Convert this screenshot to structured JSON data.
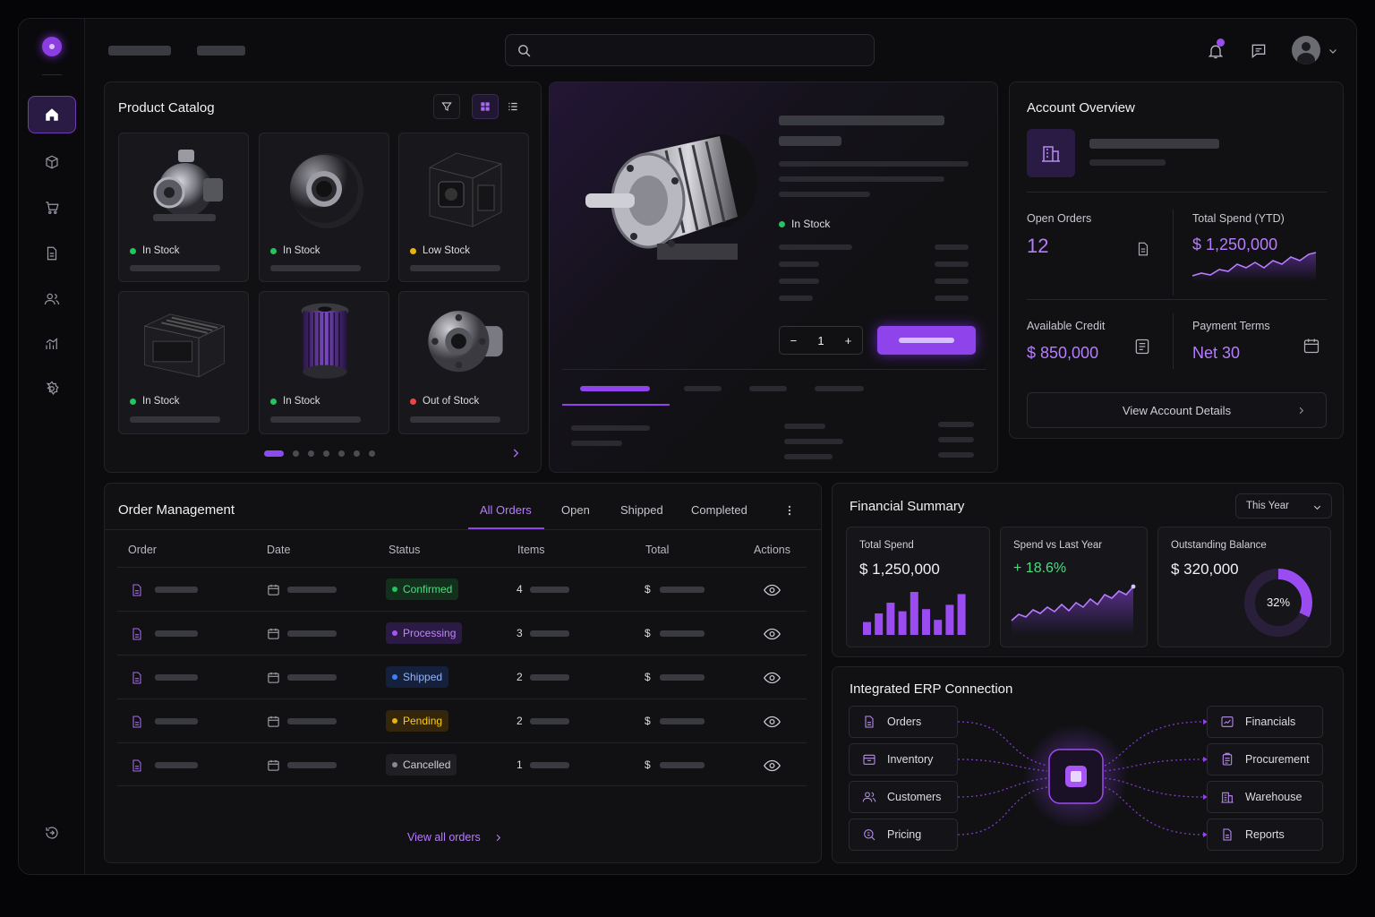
{
  "catalog": {
    "title": "Product Catalog",
    "products": [
      {
        "status": "In Stock",
        "status_color": "#22c55e"
      },
      {
        "status": "In Stock",
        "status_color": "#22c55e"
      },
      {
        "status": "Low Stock",
        "status_color": "#eab308"
      },
      {
        "status": "In Stock",
        "status_color": "#22c55e"
      },
      {
        "status": "In Stock",
        "status_color": "#22c55e"
      },
      {
        "status": "Out of Stock",
        "status_color": "#ef4444"
      }
    ]
  },
  "detail": {
    "status": "In Stock",
    "quantity": "1",
    "qty_minus": "−",
    "qty_plus": "+"
  },
  "account": {
    "title": "Account Overview",
    "open_orders_label": "Open Orders",
    "open_orders_value": "12",
    "total_spend_label": "Total Spend (YTD)",
    "total_spend_value": "$ 1,250,000",
    "available_credit_label": "Available Credit",
    "available_credit_value": "$ 850,000",
    "payment_terms_label": "Payment Terms",
    "payment_terms_value": "Net 30",
    "view_details": "View Account Details"
  },
  "orders": {
    "title": "Order Management",
    "tabs": [
      "All Orders",
      "Open",
      "Shipped",
      "Completed"
    ],
    "columns": [
      "Order",
      "Date",
      "Status",
      "Items",
      "Total",
      "Actions"
    ],
    "rows": [
      {
        "status": "Confirmed",
        "items": "4",
        "currency": "$"
      },
      {
        "status": "Processing",
        "items": "3",
        "currency": "$"
      },
      {
        "status": "Shipped",
        "items": "2",
        "currency": "$"
      },
      {
        "status": "Pending",
        "items": "2",
        "currency": "$"
      },
      {
        "status": "Cancelled",
        "items": "1",
        "currency": "$"
      }
    ],
    "view_all": "View all orders"
  },
  "financial": {
    "title": "Financial Summary",
    "period": "This Year",
    "total_spend_label": "Total Spend",
    "total_spend_value": "$ 1,250,000",
    "spend_bars": [
      0.3,
      0.5,
      0.75,
      0.55,
      1.0,
      0.6,
      0.35,
      0.7,
      0.95
    ],
    "spend_vs_label": "Spend vs Last Year",
    "spend_vs_value": "+ 18.6%",
    "outstanding_label": "Outstanding Balance",
    "outstanding_value": "$ 320,000",
    "outstanding_percent_label": "32%",
    "outstanding_percent": 0.32
  },
  "erp": {
    "title": "Integrated ERP Connection",
    "sources": [
      "Orders",
      "Inventory",
      "Customers",
      "Pricing"
    ],
    "targets": [
      "Financials",
      "Procurement",
      "Warehouse",
      "Reports"
    ]
  },
  "colors": {
    "accent": "#8f43ea",
    "accent_light": "#b77cff"
  }
}
